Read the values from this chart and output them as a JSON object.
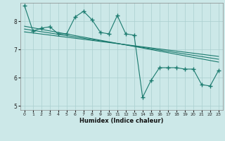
{
  "xlabel": "Humidex (Indice chaleur)",
  "bg_color": "#cce8e8",
  "grid_color": "#aacfcf",
  "line_color": "#1a7a6e",
  "ylim": [
    4.85,
    8.65
  ],
  "xlim": [
    -0.5,
    23.5
  ],
  "yticks": [
    5,
    6,
    7,
    8
  ],
  "xticks": [
    0,
    1,
    2,
    3,
    4,
    5,
    6,
    7,
    8,
    9,
    10,
    11,
    12,
    13,
    14,
    15,
    16,
    17,
    18,
    19,
    20,
    21,
    22,
    23
  ],
  "series1_y": [
    8.55,
    7.65,
    7.75,
    7.8,
    7.55,
    7.55,
    8.15,
    8.35,
    8.05,
    7.6,
    7.55,
    8.2,
    7.55,
    7.5,
    5.3,
    5.9,
    6.35,
    6.35,
    6.35,
    6.3,
    6.3,
    5.75,
    5.7,
    6.25
  ],
  "reg1_y_start": 7.82,
  "reg1_y_end": 6.55,
  "reg2_y_start": 7.72,
  "reg2_y_end": 6.65,
  "reg3_y_start": 7.62,
  "reg3_y_end": 6.75
}
